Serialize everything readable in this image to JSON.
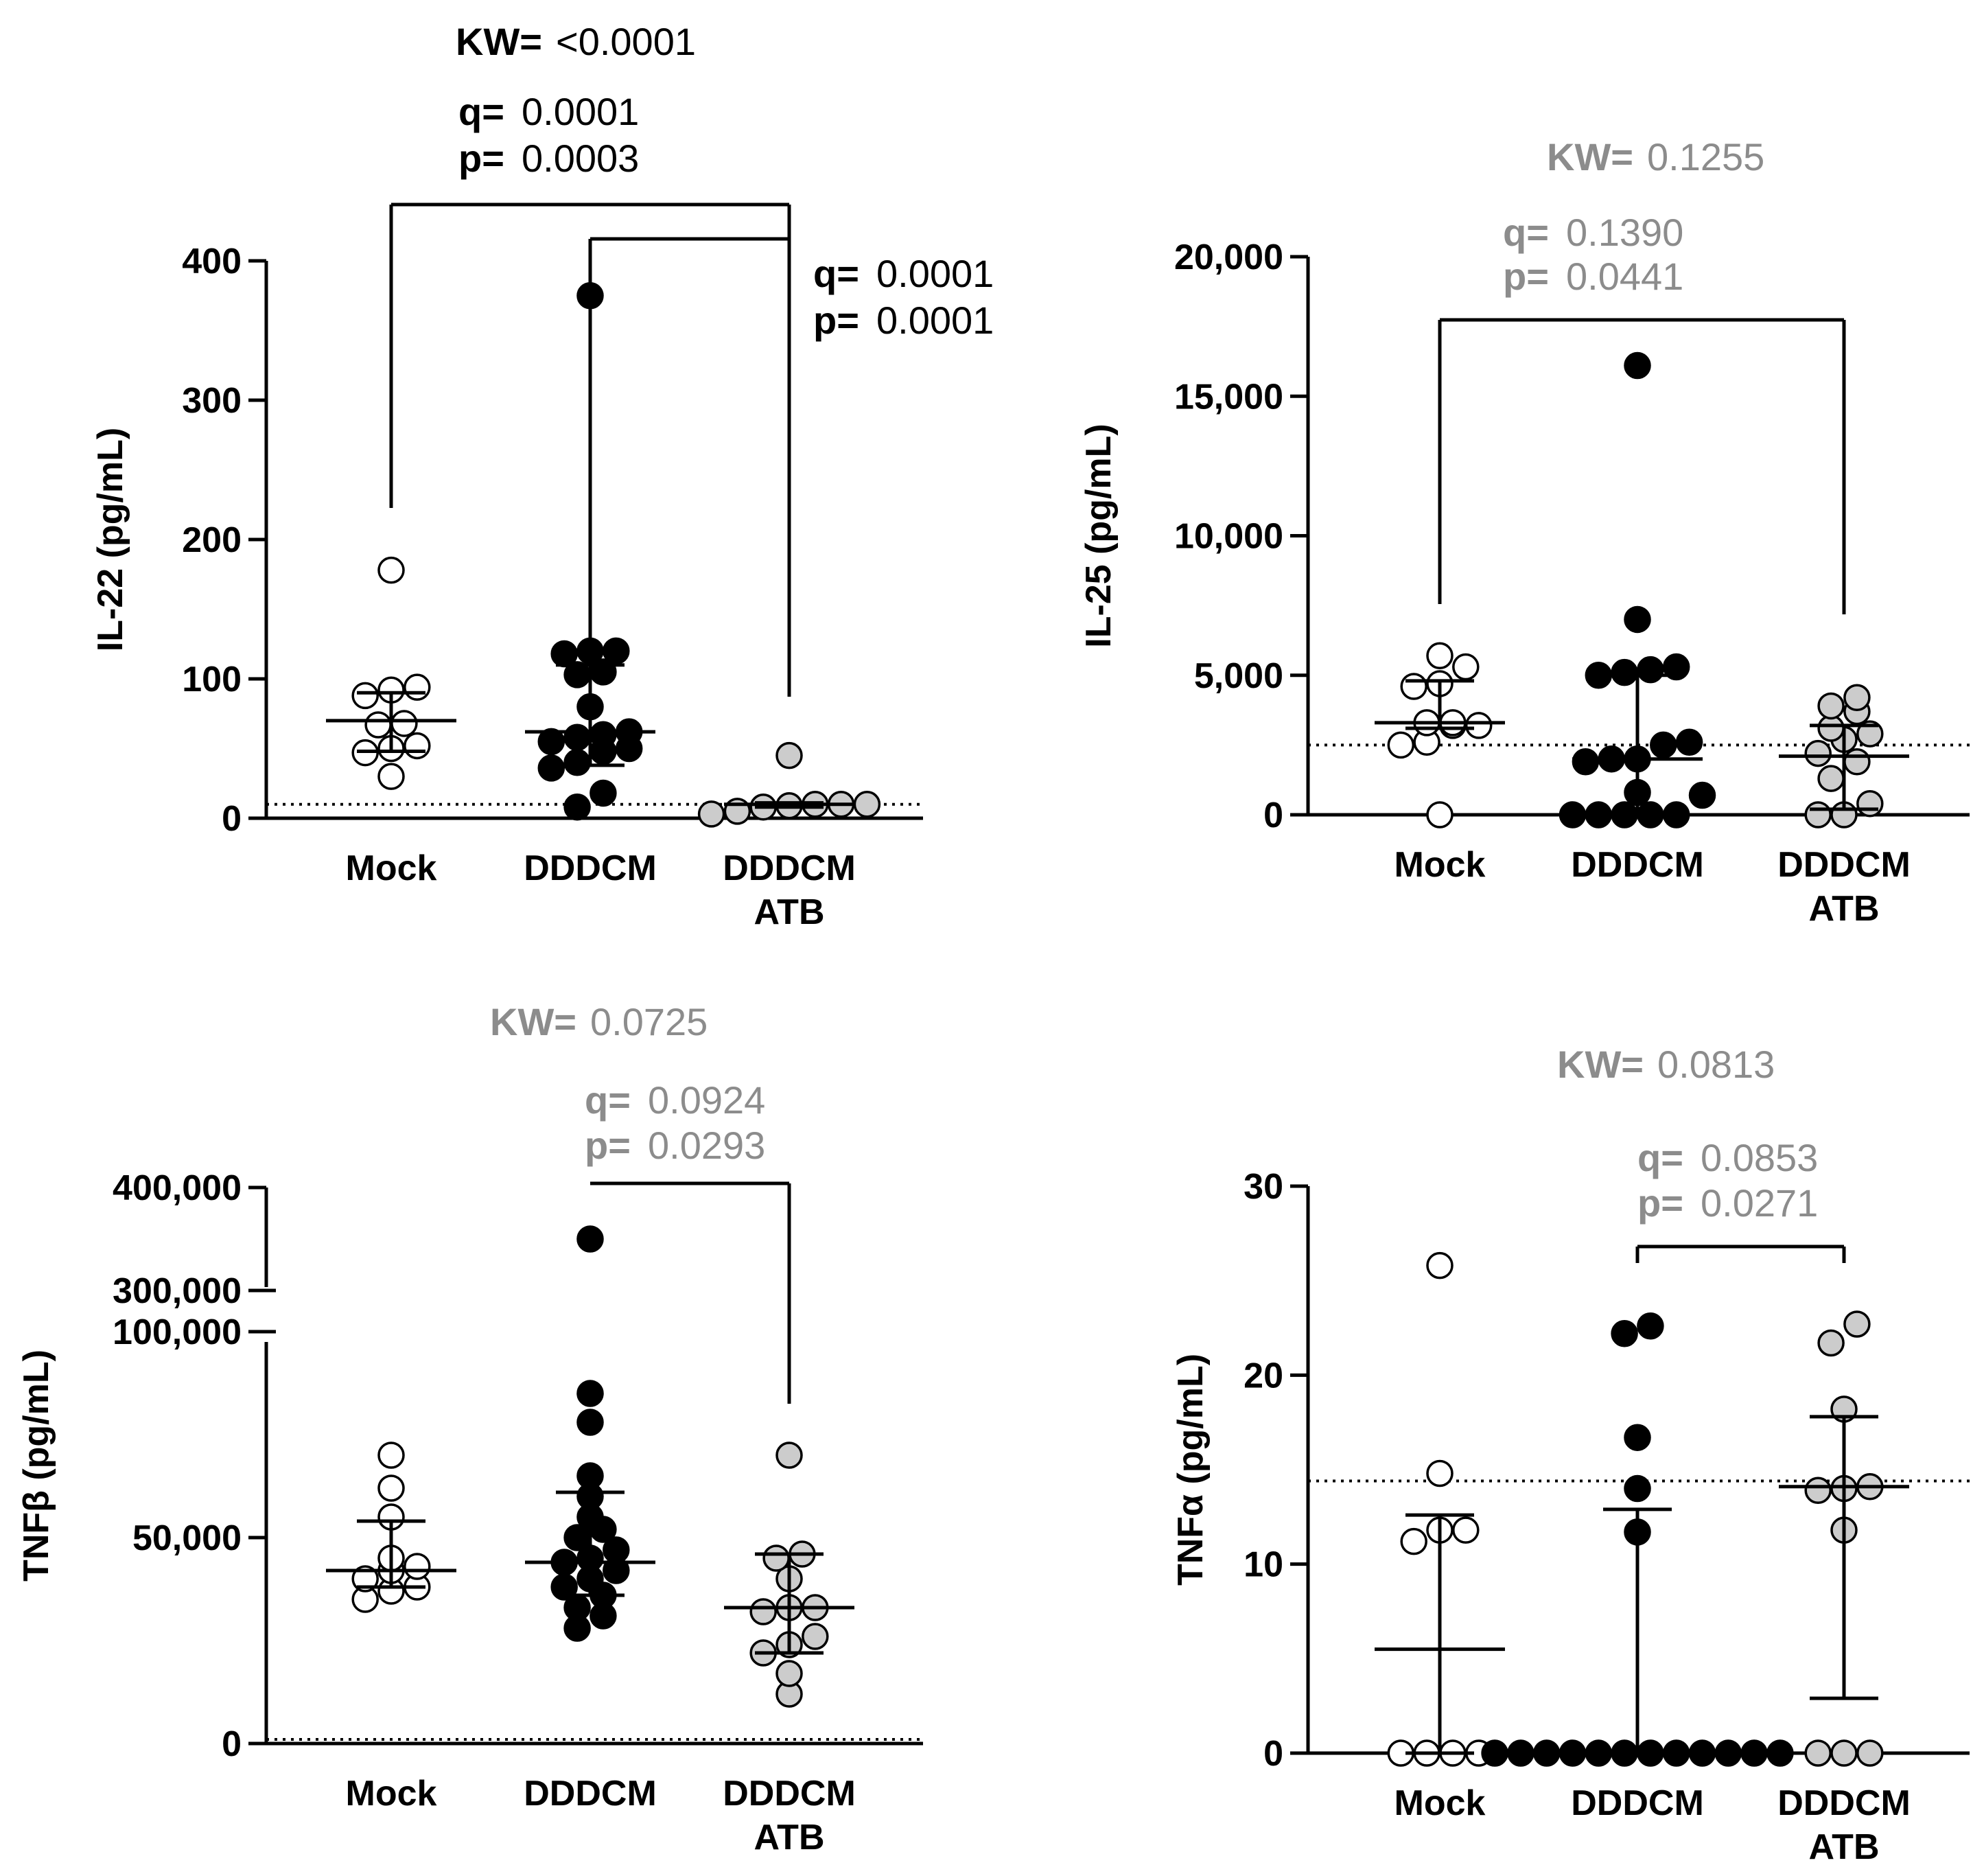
{
  "chart_data": [
    {
      "type": "scatter",
      "id": "il22",
      "ylabel": "IL-22 (pg/mL)",
      "categories": [
        "Mock",
        "DDDCM",
        "DDDCM ATB"
      ],
      "category_lines": [
        [
          "Mock"
        ],
        [
          "DDDCM"
        ],
        [
          "DDDCM",
          "ATB"
        ]
      ],
      "ylim": [
        0,
        400
      ],
      "yticks": [
        0,
        100,
        200,
        300,
        400
      ],
      "ytick_labels": [
        "0",
        "100",
        "200",
        "300",
        "400"
      ],
      "detection_limit": 10,
      "series": [
        {
          "name": "Mock",
          "fill": "#ffffff",
          "values": [
            178,
            94,
            92,
            88,
            68,
            67,
            52,
            50,
            47,
            30
          ],
          "median": 70,
          "q1": 48,
          "q3": 90
        },
        {
          "name": "DDDCM",
          "fill": "#000000",
          "values": [
            375,
            120,
            118,
            120,
            105,
            103,
            80,
            62,
            60,
            58,
            55,
            50,
            48,
            40,
            36,
            18,
            8
          ],
          "median": 62,
          "q1": 38,
          "q3": 110
        },
        {
          "name": "DDDCM ATB",
          "fill": "#cccccc",
          "values": [
            45,
            10,
            10,
            10,
            9,
            8,
            5,
            3
          ],
          "median": 10,
          "q1": 8,
          "q3": 11
        }
      ],
      "kw": {
        "label": "KW=",
        "value": "<0.0001",
        "color": "#000000"
      },
      "comparisons": [
        {
          "from": 0,
          "to": 2,
          "q_label": "q=",
          "q": "0.0001",
          "p_label": "p=",
          "p": "0.0003",
          "color": "#000000"
        },
        {
          "from": 1,
          "to": 2,
          "q_label": "q=",
          "q": "0.0001",
          "p_label": "p=",
          "p": "0.0001",
          "color": "#000000"
        }
      ]
    },
    {
      "type": "scatter",
      "id": "il25",
      "ylabel": "IL-25 (pg/mL)",
      "categories": [
        "Mock",
        "DDDCM",
        "DDDCM ATB"
      ],
      "category_lines": [
        [
          "Mock"
        ],
        [
          "DDDCM"
        ],
        [
          "DDDCM",
          "ATB"
        ]
      ],
      "ylim": [
        0,
        20000
      ],
      "yticks": [
        0,
        5000,
        10000,
        15000,
        20000
      ],
      "ytick_labels": [
        "0",
        "5,000",
        "10,000",
        "15,000",
        "20,000"
      ],
      "detection_limit": 2500,
      "series": [
        {
          "name": "Mock",
          "fill": "#ffffff",
          "values": [
            5700,
            5300,
            4700,
            4600,
            3300,
            3300,
            3200,
            3200,
            2600,
            2500,
            0
          ],
          "median": 3300,
          "q1": 3100,
          "q3": 4800
        },
        {
          "name": "DDDCM",
          "fill": "#000000",
          "values": [
            16100,
            7000,
            5300,
            5200,
            5100,
            5000,
            2600,
            2500,
            2000,
            2000,
            1900,
            800,
            700,
            0,
            0,
            0,
            0,
            0
          ],
          "median": 2000,
          "q1": 0,
          "q3": 5000
        },
        {
          "name": "DDDCM ATB",
          "fill": "#cccccc",
          "values": [
            4200,
            3900,
            3700,
            3100,
            2900,
            2700,
            2200,
            1900,
            1300,
            400,
            0,
            0
          ],
          "median": 2100,
          "q1": 200,
          "q3": 3200
        }
      ],
      "kw": {
        "label": "KW=",
        "value": "0.1255",
        "color": "#8c8c8c"
      },
      "comparisons": [
        {
          "from": 0,
          "to": 2,
          "q_label": "q=",
          "q": "0.1390",
          "p_label": "p=",
          "p": "0.0441",
          "color": "#8c8c8c"
        }
      ]
    },
    {
      "type": "scatter",
      "id": "tnfb",
      "ylabel": "TNFβ (pg/mL)",
      "categories": [
        "Mock",
        "DDDCM",
        "DDDCM ATB"
      ],
      "category_lines": [
        [
          "Mock"
        ],
        [
          "DDDCM"
        ],
        [
          "DDDCM",
          "ATB"
        ]
      ],
      "axis_break": {
        "lower": [
          0,
          100000
        ],
        "upper": [
          300000,
          400000
        ]
      },
      "yticks": [
        0,
        50000,
        100000,
        300000,
        400000
      ],
      "ytick_labels": [
        "0",
        "50,000",
        "100,000",
        "300,000",
        "400,000"
      ],
      "detection_limit": 1000,
      "series": [
        {
          "name": "Mock",
          "fill": "#ffffff",
          "values": [
            70000,
            62000,
            55000,
            45000,
            43000,
            42000,
            40000,
            38000,
            37000,
            35000
          ],
          "median": 42000,
          "q1": 38000,
          "q3": 54000
        },
        {
          "name": "DDDCM",
          "fill": "#000000",
          "values": [
            350000,
            85000,
            78000,
            65000,
            60000,
            55000,
            52000,
            50000,
            47000,
            45000,
            44000,
            42000,
            40000,
            38000,
            36000,
            33000,
            31000,
            28000
          ],
          "median": 44000,
          "q1": 36000,
          "q3": 61000
        },
        {
          "name": "DDDCM ATB",
          "fill": "#cccccc",
          "values": [
            70000,
            46000,
            45000,
            40000,
            33000,
            33000,
            32000,
            26000,
            24000,
            22000,
            17000,
            12000
          ],
          "median": 33000,
          "q1": 22000,
          "q3": 46000
        }
      ],
      "kw": {
        "label": "KW=",
        "value": "0.0725",
        "color": "#8c8c8c"
      },
      "comparisons": [
        {
          "from": 1,
          "to": 2,
          "q_label": "q=",
          "q": "0.0924",
          "p_label": "p=",
          "p": "0.0293",
          "color": "#8c8c8c"
        }
      ]
    },
    {
      "type": "scatter",
      "id": "tnfa",
      "ylabel": "TNFα (pg/mL)",
      "categories": [
        "Mock",
        "DDDCM",
        "DDDCM ATB"
      ],
      "category_lines": [
        [
          "Mock"
        ],
        [
          "DDDCM"
        ],
        [
          "DDDCM",
          "ATB"
        ]
      ],
      "ylim": [
        0,
        30
      ],
      "yticks": [
        0,
        10,
        20,
        30
      ],
      "ytick_labels": [
        "0",
        "10",
        "20",
        "30"
      ],
      "detection_limit": 14.4,
      "series": [
        {
          "name": "Mock",
          "fill": "#ffffff",
          "values": [
            25.8,
            14.8,
            11.8,
            11.8,
            11.2,
            0,
            0,
            0,
            0
          ],
          "median": 5.5,
          "q1": 0,
          "q3": 12.6
        },
        {
          "name": "DDDCM",
          "fill": "#000000",
          "values": [
            22.6,
            22.2,
            16.7,
            14.0,
            11.7,
            0,
            0,
            0,
            0,
            0,
            0,
            0,
            0,
            0,
            0,
            0,
            0
          ],
          "median": 0,
          "q1": 0,
          "q3": 12.9
        },
        {
          "name": "DDDCM ATB",
          "fill": "#cccccc",
          "values": [
            22.7,
            21.7,
            18.2,
            14.1,
            14.0,
            13.9,
            11.8,
            0,
            0,
            0
          ],
          "median": 14.1,
          "q1": 2.9,
          "q3": 17.8
        }
      ],
      "kw": {
        "label": "KW=",
        "value": "0.0813",
        "color": "#8c8c8c"
      },
      "comparisons": [
        {
          "from": 1,
          "to": 2,
          "q_label": "q=",
          "q": "0.0853",
          "p_label": "p=",
          "p": "0.0271",
          "color": "#8c8c8c"
        }
      ]
    }
  ]
}
